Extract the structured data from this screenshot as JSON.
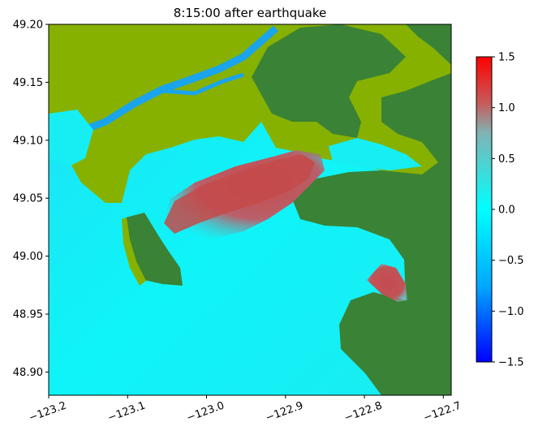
{
  "chart_data": {
    "type": "heatmap",
    "title": "8:15:00 after earthquake",
    "xlabel": "",
    "ylabel": "",
    "xlim": [
      -123.2,
      -122.69
    ],
    "ylim": [
      48.88,
      49.2
    ],
    "x_ticks": [
      -123.2,
      -123.1,
      -123.0,
      -122.9,
      -122.8,
      -122.7
    ],
    "x_tick_labels": [
      "−123.2",
      "−123.1",
      "−123.0",
      "−122.9",
      "−122.8",
      "−122.7"
    ],
    "y_ticks": [
      48.9,
      48.95,
      49.0,
      49.05,
      49.1,
      49.15,
      49.2
    ],
    "y_tick_labels": [
      "48.90",
      "48.95",
      "49.00",
      "49.05",
      "49.10",
      "49.15",
      "49.20"
    ],
    "colorbar": {
      "range": [
        -1.5,
        1.5
      ],
      "ticks": [
        -1.5,
        -1.0,
        -0.5,
        0.0,
        0.5,
        1.0,
        1.5
      ],
      "tick_labels": [
        "−1.5",
        "−1.0",
        "−0.5",
        "0.0",
        "0.5",
        "1.0",
        "1.5"
      ],
      "colors": [
        "#0000ff",
        "#00a8ff",
        "#00ffff",
        "#c85a5a",
        "#ff0000"
      ]
    },
    "colors": {
      "land_dark": "#3a8236",
      "land_light": "#86b100",
      "water_neutral": "#16e8f0",
      "water_high": "#c0504e"
    },
    "grid": false
  }
}
